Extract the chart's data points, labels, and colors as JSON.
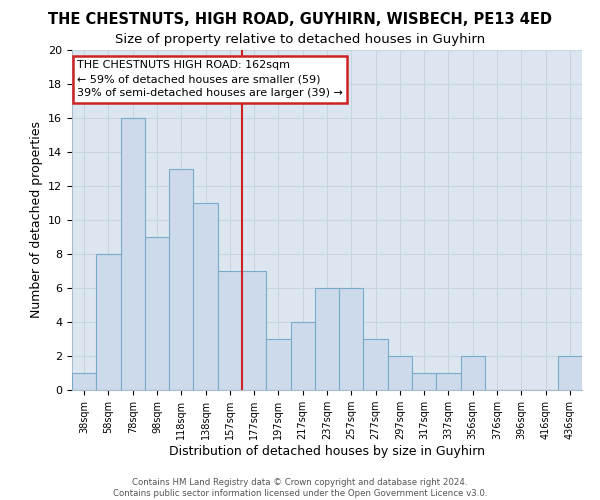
{
  "title": "THE CHESTNUTS, HIGH ROAD, GUYHIRN, WISBECH, PE13 4ED",
  "subtitle": "Size of property relative to detached houses in Guyhirn",
  "xlabel": "Distribution of detached houses by size in Guyhirn",
  "ylabel": "Number of detached properties",
  "bar_labels": [
    "38sqm",
    "58sqm",
    "78sqm",
    "98sqm",
    "118sqm",
    "138sqm",
    "157sqm",
    "177sqm",
    "197sqm",
    "217sqm",
    "237sqm",
    "257sqm",
    "277sqm",
    "297sqm",
    "317sqm",
    "337sqm",
    "356sqm",
    "376sqm",
    "396sqm",
    "416sqm",
    "436sqm"
  ],
  "bar_values": [
    1,
    8,
    16,
    9,
    13,
    11,
    7,
    7,
    3,
    4,
    6,
    6,
    3,
    2,
    1,
    1,
    2,
    0,
    0,
    0,
    2
  ],
  "bar_color": "#ccdaeb",
  "bar_edge_color": "#7aaac8",
  "vline_color": "#cc2222",
  "vline_x_index": 6.5,
  "annotation_text": "THE CHESTNUTS HIGH ROAD: 162sqm\n← 59% of detached houses are smaller (59)\n39% of semi-detached houses are larger (39) →",
  "annotation_box_color": "#cc2222",
  "ylim": [
    0,
    20
  ],
  "yticks": [
    0,
    2,
    4,
    6,
    8,
    10,
    12,
    14,
    16,
    18,
    20
  ],
  "grid_color": "#c8d4de",
  "bg_color": "#dce6f0",
  "footer_text": "Contains HM Land Registry data © Crown copyright and database right 2024.\nContains public sector information licensed under the Open Government Licence v3.0.",
  "title_fontsize": 10.5,
  "subtitle_fontsize": 9.5,
  "xlabel_fontsize": 9,
  "ylabel_fontsize": 9,
  "tick_fontsize": 8,
  "annot_fontsize": 8
}
